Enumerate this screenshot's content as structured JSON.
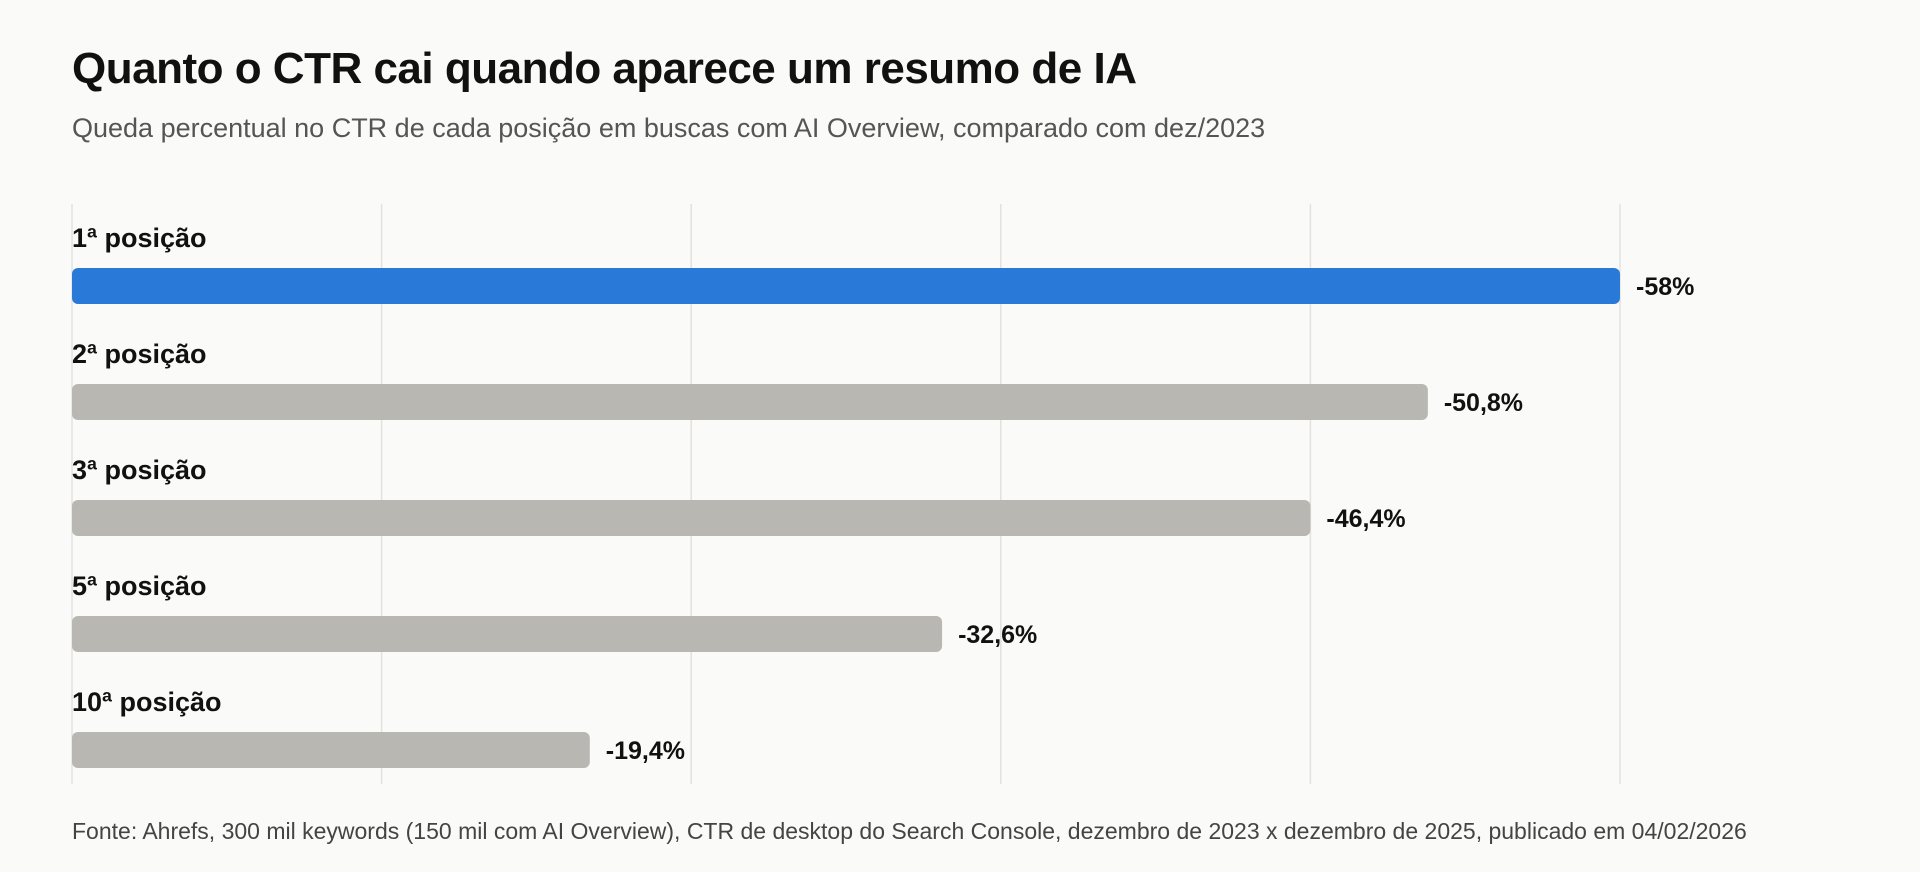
{
  "header": {
    "title": "Quanto o CTR cai quando aparece um resumo de IA",
    "subtitle": "Queda percentual no CTR de cada posição em buscas com AI Overview, comparado com dez/2023"
  },
  "footer": {
    "source": "Fonte: Ahrefs, 300 mil keywords (150 mil com AI Overview), CTR de desktop do Search Console, dezembro de 2023 x dezembro de 2025, publicado em 04/02/2026"
  },
  "colors": {
    "highlight": "#2979d8",
    "default_bar": "#b8b7b1",
    "gridline": "#e2e1dd"
  },
  "chart_data": {
    "type": "bar",
    "orientation": "horizontal",
    "title": "Quanto o CTR cai quando aparece um resumo de IA",
    "subtitle": "Queda percentual no CTR de cada posição em buscas com AI Overview, comparado com dez/2023",
    "categories": [
      "1ª posição",
      "2ª posição",
      "3ª posição",
      "5ª posição",
      "10ª posição"
    ],
    "values": [
      -58,
      -50.8,
      -46.4,
      -32.6,
      -19.4
    ],
    "value_labels": [
      "-58%",
      "-50,8%",
      "-46,4%",
      "-32,6%",
      "-19,4%"
    ],
    "highlighted": [
      "1ª posição"
    ],
    "xlim": [
      0,
      -58
    ],
    "grid": true,
    "xlabel": "",
    "ylabel": ""
  }
}
